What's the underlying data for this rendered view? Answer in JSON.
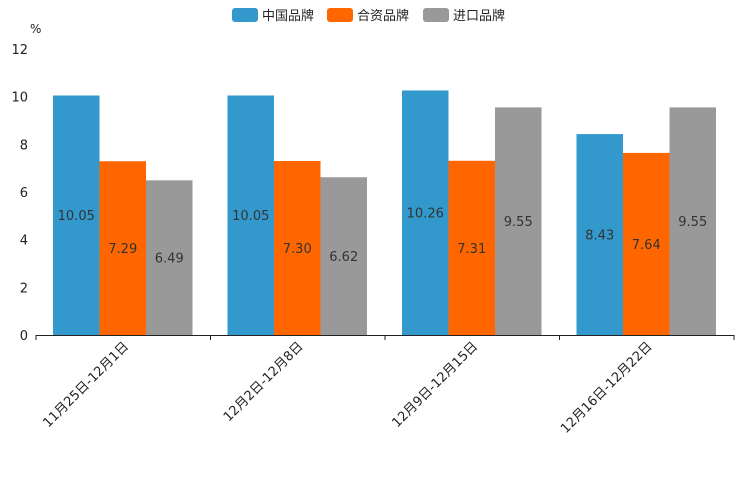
{
  "chart_data": {
    "type": "bar",
    "unit": "%",
    "categories": [
      "11月25日-12月1日",
      "12月2日-12月8日",
      "12月9日-12月15日",
      "12月16日-12月22日"
    ],
    "series": [
      {
        "name": "中国品牌",
        "color": "#3399CC",
        "values": [
          10.05,
          10.05,
          10.26,
          8.43
        ]
      },
      {
        "name": "合资品牌",
        "color": "#FF6600",
        "values": [
          7.29,
          7.3,
          7.31,
          7.64
        ]
      },
      {
        "name": "进口品牌",
        "color": "#999999",
        "values": [
          6.49,
          6.62,
          9.55,
          9.55
        ]
      }
    ],
    "data_labels": [
      [
        "10.05",
        "10.05",
        "10.26",
        "8.43"
      ],
      [
        "7.29",
        "7.30",
        "7.31",
        "7.64"
      ],
      [
        "6.49",
        "6.62",
        "9.55",
        "9.55"
      ]
    ],
    "ylim": [
      0,
      12
    ],
    "yticks": [
      0,
      2,
      4,
      6,
      8,
      10,
      12
    ],
    "legend_position": "top-center",
    "grid": false
  }
}
